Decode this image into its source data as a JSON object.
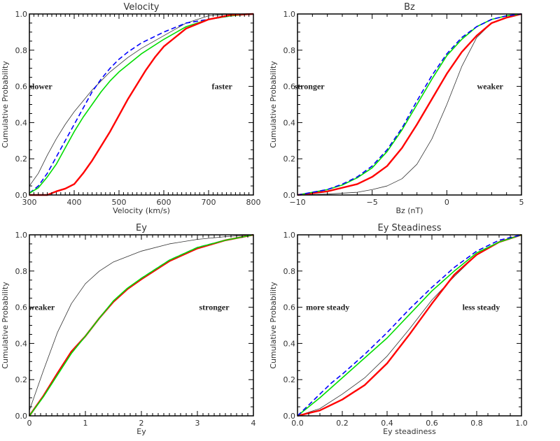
{
  "figure": {
    "series_styles": {
      "black": {
        "color": "#333333",
        "width": 0.8,
        "dash": "none"
      },
      "blue": {
        "color": "#0000ff",
        "width": 1.6,
        "dash": "7,4"
      },
      "green": {
        "color": "#00dd00",
        "width": 1.6,
        "dash": "none"
      },
      "red": {
        "color": "#ff0000",
        "width": 2.4,
        "dash": "none"
      }
    }
  },
  "chart_data": [
    {
      "type": "line",
      "title": "Velocity",
      "xlabel": "Velocity (km/s)",
      "ylabel": "Cumulative Probability",
      "xlim": [
        300,
        800
      ],
      "ylim": [
        0,
        1
      ],
      "xticks": [
        300,
        400,
        500,
        600,
        700,
        800
      ],
      "xtick_labels": [
        "300",
        "400",
        "500",
        "600",
        "700",
        "800"
      ],
      "x_minor_step": 10,
      "yticks": [
        0,
        0.2,
        0.4,
        0.6,
        0.8,
        1.0
      ],
      "ytick_labels": [
        "0.0",
        "0.2",
        "0.4",
        "0.6",
        "0.8",
        "1.0"
      ],
      "y_minor_step": 0.05,
      "annotations": [
        {
          "text": "slower",
          "x": 325,
          "y": 0.6
        },
        {
          "text": "faster",
          "x": 730,
          "y": 0.6
        }
      ],
      "series": [
        {
          "name": "black",
          "x": [
            300,
            320,
            340,
            360,
            380,
            400,
            420,
            440,
            460,
            480,
            500,
            520,
            550,
            600,
            650,
            700,
            750,
            800
          ],
          "y": [
            0.05,
            0.12,
            0.22,
            0.31,
            0.39,
            0.46,
            0.52,
            0.58,
            0.63,
            0.68,
            0.72,
            0.76,
            0.81,
            0.88,
            0.95,
            0.99,
            1.0,
            1.0
          ]
        },
        {
          "name": "blue",
          "x": [
            300,
            320,
            340,
            360,
            380,
            400,
            420,
            440,
            460,
            480,
            500,
            520,
            550,
            600,
            650,
            700,
            750,
            800
          ],
          "y": [
            0.01,
            0.05,
            0.12,
            0.21,
            0.3,
            0.39,
            0.48,
            0.57,
            0.64,
            0.7,
            0.75,
            0.79,
            0.84,
            0.9,
            0.95,
            0.97,
            0.99,
            1.0
          ]
        },
        {
          "name": "green",
          "x": [
            300,
            320,
            340,
            360,
            380,
            400,
            420,
            440,
            460,
            480,
            500,
            520,
            550,
            600,
            650,
            700,
            750,
            800
          ],
          "y": [
            0.01,
            0.04,
            0.1,
            0.17,
            0.26,
            0.35,
            0.43,
            0.5,
            0.57,
            0.63,
            0.68,
            0.72,
            0.78,
            0.86,
            0.93,
            0.97,
            0.99,
            1.0
          ]
        },
        {
          "name": "red",
          "x": [
            300,
            340,
            360,
            380,
            400,
            420,
            440,
            460,
            480,
            500,
            520,
            540,
            560,
            580,
            600,
            650,
            700,
            750,
            800
          ],
          "y": [
            0.0,
            0.0,
            0.02,
            0.035,
            0.06,
            0.12,
            0.19,
            0.27,
            0.35,
            0.44,
            0.53,
            0.61,
            0.69,
            0.76,
            0.82,
            0.92,
            0.97,
            0.995,
            1.0
          ]
        }
      ]
    },
    {
      "type": "line",
      "title": "Bz",
      "xlabel": "Bz (nT)",
      "ylabel": "Cumulative Probability",
      "xlim": [
        -10,
        5
      ],
      "ylim": [
        0,
        1
      ],
      "xticks": [
        -10,
        -5,
        0,
        5
      ],
      "xtick_labels": [
        "−10",
        "−5",
        "0",
        "5"
      ],
      "x_minor_step": 1,
      "yticks": [
        0,
        0.2,
        0.4,
        0.6,
        0.8,
        1.0
      ],
      "ytick_labels": [
        "0.0",
        "0.2",
        "0.4",
        "0.6",
        "0.8",
        "1.0"
      ],
      "y_minor_step": 0.05,
      "annotations": [
        {
          "text": "stronger",
          "x": -9.2,
          "y": 0.6
        },
        {
          "text": "weaker",
          "x": 2.9,
          "y": 0.6
        }
      ],
      "series": [
        {
          "name": "black",
          "x": [
            -10,
            -8,
            -6,
            -5,
            -4,
            -3,
            -2,
            -1,
            0,
            1,
            2,
            3,
            4,
            5
          ],
          "y": [
            0.0,
            0.005,
            0.015,
            0.03,
            0.05,
            0.09,
            0.17,
            0.31,
            0.5,
            0.71,
            0.87,
            0.95,
            0.98,
            1.0
          ]
        },
        {
          "name": "red",
          "x": [
            -10,
            -8,
            -7,
            -6,
            -5,
            -4,
            -3,
            -2,
            -1,
            0,
            1,
            2,
            3,
            4,
            5
          ],
          "y": [
            0.0,
            0.02,
            0.04,
            0.06,
            0.1,
            0.16,
            0.26,
            0.39,
            0.53,
            0.67,
            0.79,
            0.88,
            0.95,
            0.98,
            1.0
          ]
        },
        {
          "name": "green",
          "x": [
            -10,
            -8,
            -7,
            -6,
            -5,
            -4,
            -3,
            -2,
            -1,
            0,
            1,
            2,
            3,
            4,
            5
          ],
          "y": [
            0.0,
            0.03,
            0.055,
            0.095,
            0.15,
            0.24,
            0.36,
            0.5,
            0.64,
            0.77,
            0.86,
            0.93,
            0.97,
            0.99,
            1.0
          ]
        },
        {
          "name": "blue",
          "x": [
            -10,
            -8,
            -7,
            -6,
            -5,
            -4,
            -3,
            -2,
            -1,
            0,
            1,
            2,
            3,
            4,
            5
          ],
          "y": [
            0.0,
            0.03,
            0.06,
            0.1,
            0.16,
            0.25,
            0.37,
            0.52,
            0.66,
            0.78,
            0.87,
            0.93,
            0.97,
            0.99,
            1.0
          ]
        }
      ]
    },
    {
      "type": "line",
      "title": "Ey",
      "xlabel": "Ey",
      "ylabel": "Cumulative Probability",
      "xlim": [
        0,
        4
      ],
      "ylim": [
        0,
        1
      ],
      "xticks": [
        0,
        1,
        2,
        3,
        4
      ],
      "xtick_labels": [
        "0",
        "1",
        "2",
        "3",
        "4"
      ],
      "x_minor_step": 0.1,
      "yticks": [
        0,
        0.2,
        0.4,
        0.6,
        0.8,
        1.0
      ],
      "ytick_labels": [
        "0.0",
        "0.2",
        "0.4",
        "0.6",
        "0.8",
        "1.0"
      ],
      "y_minor_step": 0.05,
      "annotations": [
        {
          "text": "weaker",
          "x": 0.22,
          "y": 0.6
        },
        {
          "text": "stronger",
          "x": 3.3,
          "y": 0.6
        }
      ],
      "series": [
        {
          "name": "black",
          "x": [
            0,
            0.25,
            0.5,
            0.75,
            1,
            1.25,
            1.5,
            2,
            2.5,
            3,
            3.5,
            4
          ],
          "y": [
            0.03,
            0.25,
            0.46,
            0.62,
            0.73,
            0.8,
            0.85,
            0.91,
            0.95,
            0.975,
            0.99,
            1.0
          ]
        },
        {
          "name": "blue",
          "x": [
            0,
            0.25,
            0.5,
            0.75,
            1,
            1.25,
            1.5,
            1.75,
            2,
            2.5,
            3,
            3.5,
            4
          ],
          "y": [
            0.0,
            0.11,
            0.23,
            0.35,
            0.44,
            0.54,
            0.63,
            0.7,
            0.76,
            0.86,
            0.93,
            0.97,
            1.0
          ]
        },
        {
          "name": "red",
          "x": [
            0,
            0.25,
            0.5,
            0.75,
            1,
            1.25,
            1.5,
            1.75,
            2,
            2.5,
            3,
            3.5,
            4
          ],
          "y": [
            0.0,
            0.11,
            0.235,
            0.355,
            0.44,
            0.54,
            0.63,
            0.7,
            0.755,
            0.855,
            0.925,
            0.97,
            1.0
          ]
        },
        {
          "name": "green",
          "x": [
            0,
            0.25,
            0.5,
            0.75,
            1,
            1.25,
            1.5,
            1.75,
            2,
            2.5,
            3,
            3.5,
            4
          ],
          "y": [
            0.0,
            0.105,
            0.225,
            0.345,
            0.44,
            0.54,
            0.635,
            0.705,
            0.76,
            0.86,
            0.93,
            0.97,
            1.0
          ]
        }
      ]
    },
    {
      "type": "line",
      "title": "Ey Steadiness",
      "xlabel": "Ey steadiness",
      "ylabel": "Cumulative Probability",
      "xlim": [
        0,
        1
      ],
      "ylim": [
        0,
        1
      ],
      "xticks": [
        0,
        0.2,
        0.4,
        0.6,
        0.8,
        1.0
      ],
      "xtick_labels": [
        "0.0",
        "0.2",
        "0.4",
        "0.6",
        "0.8",
        "1.0"
      ],
      "x_minor_step": 0.05,
      "yticks": [
        0,
        0.2,
        0.4,
        0.6,
        0.8,
        1.0
      ],
      "ytick_labels": [
        "0.0",
        "0.2",
        "0.4",
        "0.6",
        "0.8",
        "1.0"
      ],
      "y_minor_step": 0.05,
      "annotations": [
        {
          "text": "more steady",
          "x": 0.135,
          "y": 0.6
        },
        {
          "text": "less steady",
          "x": 0.82,
          "y": 0.6
        }
      ],
      "series": [
        {
          "name": "black",
          "x": [
            0,
            0.1,
            0.2,
            0.3,
            0.4,
            0.5,
            0.6,
            0.7,
            0.8,
            0.9,
            1.0
          ],
          "y": [
            0.0,
            0.04,
            0.12,
            0.21,
            0.33,
            0.48,
            0.64,
            0.77,
            0.89,
            0.96,
            1.0
          ]
        },
        {
          "name": "red",
          "x": [
            0,
            0.1,
            0.2,
            0.3,
            0.4,
            0.45,
            0.5,
            0.6,
            0.7,
            0.8,
            0.9,
            1.0
          ],
          "y": [
            0.0,
            0.03,
            0.09,
            0.17,
            0.29,
            0.37,
            0.45,
            0.62,
            0.78,
            0.89,
            0.96,
            1.0
          ]
        },
        {
          "name": "green",
          "x": [
            0,
            0.1,
            0.2,
            0.3,
            0.4,
            0.5,
            0.6,
            0.7,
            0.8,
            0.9,
            1.0
          ],
          "y": [
            0.0,
            0.1,
            0.21,
            0.32,
            0.43,
            0.56,
            0.69,
            0.8,
            0.9,
            0.96,
            1.0
          ]
        },
        {
          "name": "blue",
          "x": [
            0,
            0.05,
            0.1,
            0.15,
            0.2,
            0.3,
            0.4,
            0.5,
            0.6,
            0.7,
            0.8,
            0.9,
            1.0
          ],
          "y": [
            0.0,
            0.06,
            0.12,
            0.18,
            0.23,
            0.34,
            0.46,
            0.59,
            0.71,
            0.82,
            0.91,
            0.97,
            1.0
          ]
        }
      ]
    }
  ]
}
